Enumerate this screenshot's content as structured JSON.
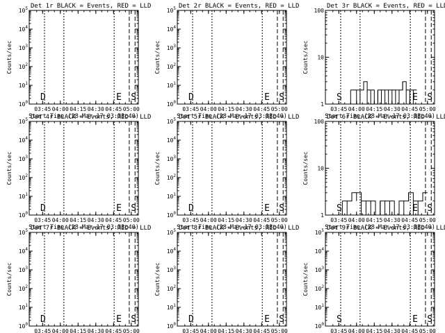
{
  "figure": {
    "ylabel": "Counts/sec",
    "xlabel": "Start Time (28-Mar-17 03:33:40)",
    "x_tick_labels": [
      "03:45",
      "04:00",
      "04:15",
      "04:30",
      "04:45",
      "05:00"
    ],
    "colors": {
      "events": "#000000",
      "lld": "#ff0000",
      "background": "#ffffff"
    }
  },
  "chart_data": [
    {
      "type": "line",
      "title": "Det 1r BLACK = Events, RED = LLD",
      "scale": "log",
      "ylim": [
        1,
        100000
      ],
      "y_tick_labels": [
        "10^0",
        "10^1",
        "10^2",
        "10^3",
        "10^4",
        "10^5"
      ],
      "xlim": [
        "03:33:40",
        "05:06:00"
      ],
      "marker_labels": [
        "D",
        "E",
        "S"
      ],
      "series": [
        {
          "name": "Events",
          "values": []
        },
        {
          "name": "LLD",
          "values": []
        }
      ]
    },
    {
      "type": "line",
      "title": "Det 2r BLACK = Events, RED = LLD",
      "scale": "log",
      "ylim": [
        1,
        100000
      ],
      "y_tick_labels": [
        "10^0",
        "10^1",
        "10^2",
        "10^3",
        "10^4",
        "10^5"
      ],
      "xlim": [
        "03:33:40",
        "05:06:00"
      ],
      "marker_labels": [
        "D",
        "E",
        "S"
      ],
      "series": [
        {
          "name": "Events",
          "values": []
        },
        {
          "name": "LLD",
          "values": []
        }
      ]
    },
    {
      "type": "line",
      "title": "Det 3r BLACK = Events, RED = LLD",
      "scale": "log",
      "ylim": [
        1,
        100
      ],
      "y_tick_labels": [
        "1",
        "10",
        "100"
      ],
      "xlim": [
        "03:33:40",
        "05:06:00"
      ],
      "marker_labels": [
        "S",
        "E",
        "S"
      ],
      "series": [
        {
          "name": "Events",
          "x": [
            "03:55",
            "04:00",
            "04:03",
            "04:06",
            "04:09",
            "04:12",
            "04:15",
            "04:18",
            "04:21",
            "04:24",
            "04:27",
            "04:30",
            "04:33",
            "04:36",
            "04:39",
            "04:42",
            "04:45",
            "04:48"
          ],
          "values": [
            2,
            2,
            2,
            3,
            2,
            2,
            1,
            2,
            2,
            2,
            2,
            2,
            2,
            2,
            3,
            2,
            2,
            2
          ]
        },
        {
          "name": "LLD",
          "values": []
        }
      ]
    },
    {
      "type": "line",
      "title": "Det 4r BLACK = Events, RED = LLD",
      "scale": "log",
      "ylim": [
        1,
        100000
      ],
      "y_tick_labels": [
        "10^0",
        "10^1",
        "10^2",
        "10^3",
        "10^4",
        "10^5"
      ],
      "xlim": [
        "03:33:40",
        "05:06:00"
      ],
      "marker_labels": [
        "D",
        "E",
        "S"
      ],
      "series": [
        {
          "name": "Events",
          "values": []
        },
        {
          "name": "LLD",
          "values": []
        }
      ]
    },
    {
      "type": "line",
      "title": "Det 5r BLACK = Events, RED = LLD",
      "scale": "log",
      "ylim": [
        1,
        100000
      ],
      "y_tick_labels": [
        "10^0",
        "10^1",
        "10^2",
        "10^3",
        "10^4",
        "10^5"
      ],
      "xlim": [
        "03:33:40",
        "05:06:00"
      ],
      "marker_labels": [
        "D",
        "E",
        "S"
      ],
      "series": [
        {
          "name": "Events",
          "values": []
        },
        {
          "name": "LLD",
          "values": []
        }
      ]
    },
    {
      "type": "line",
      "title": "Det 6r BLACK = Events, RED = LLD",
      "scale": "log",
      "ylim": [
        1,
        100
      ],
      "y_tick_labels": [
        "1",
        "10",
        "100"
      ],
      "xlim": [
        "03:33:40",
        "05:06:00"
      ],
      "marker_labels": [
        "S",
        "E",
        "S"
      ],
      "series": [
        {
          "name": "Events",
          "x": [
            "03:48",
            "03:52",
            "03:56",
            "04:00",
            "04:04",
            "04:08",
            "04:12",
            "04:16",
            "04:20",
            "04:24",
            "04:28",
            "04:32",
            "04:36",
            "04:40",
            "04:44",
            "04:48",
            "04:52",
            "04:56"
          ],
          "values": [
            2,
            2,
            3,
            3,
            2,
            2,
            2,
            1,
            2,
            2,
            2,
            1,
            2,
            2,
            3,
            2,
            2,
            3
          ]
        },
        {
          "name": "LLD",
          "values": []
        }
      ]
    },
    {
      "type": "line",
      "title": "Det 7r BLACK = Events, RED = LLD",
      "scale": "log",
      "ylim": [
        1,
        100000
      ],
      "y_tick_labels": [
        "10^0",
        "10^1",
        "10^2",
        "10^3",
        "10^4",
        "10^5"
      ],
      "xlim": [
        "03:33:40",
        "05:06:00"
      ],
      "marker_labels": [
        "D",
        "E",
        "S"
      ],
      "series": [
        {
          "name": "Events",
          "values": []
        },
        {
          "name": "LLD",
          "values": []
        }
      ]
    },
    {
      "type": "line",
      "title": "Det 8r BLACK = Events, RED = LLD",
      "scale": "log",
      "ylim": [
        1,
        100000
      ],
      "y_tick_labels": [
        "10^0",
        "10^1",
        "10^2",
        "10^3",
        "10^4",
        "10^5"
      ],
      "xlim": [
        "03:33:40",
        "05:06:00"
      ],
      "marker_labels": [
        "D",
        "E",
        "S"
      ],
      "series": [
        {
          "name": "Events",
          "values": []
        },
        {
          "name": "LLD",
          "values": []
        }
      ]
    },
    {
      "type": "line",
      "title": "Det 9r BLACK = Events, RED = LLD",
      "scale": "log",
      "ylim": [
        1,
        100000
      ],
      "y_tick_labels": [
        "10^0",
        "10^1",
        "10^2",
        "10^3",
        "10^4",
        "10^5"
      ],
      "xlim": [
        "03:33:40",
        "05:06:00"
      ],
      "marker_labels": [
        "S",
        "E",
        "S"
      ],
      "series": [
        {
          "name": "Events",
          "values": []
        },
        {
          "name": "LLD",
          "values": []
        }
      ]
    }
  ]
}
